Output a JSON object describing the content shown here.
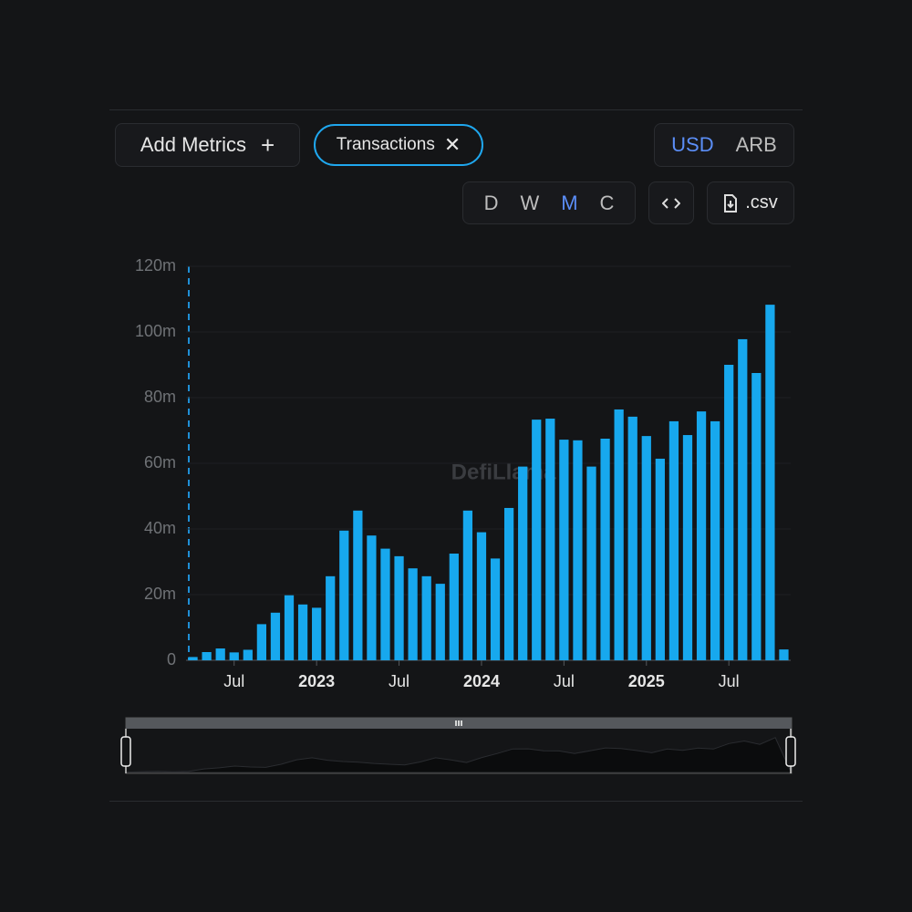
{
  "toolbar": {
    "add_metrics": "Add Metrics",
    "metric_chip": "Transactions",
    "currency": [
      "USD",
      "ARB"
    ],
    "active_currency": 0,
    "periods": [
      "D",
      "W",
      "M",
      "C"
    ],
    "active_period": 2,
    "csv": ".csv"
  },
  "chart_data": {
    "type": "bar",
    "watermark": "DefiLlama",
    "color": "#17a8ee",
    "categories": [
      null,
      null,
      null,
      "Jul",
      null,
      null,
      null,
      null,
      null,
      "2023",
      null,
      null,
      null,
      null,
      null,
      "Jul",
      null,
      null,
      null,
      null,
      null,
      "2024",
      null,
      null,
      null,
      null,
      null,
      "Jul",
      null,
      null,
      null,
      null,
      null,
      "2025",
      null,
      null,
      null,
      null,
      null,
      "Jul",
      null,
      null,
      null,
      null
    ],
    "values": [
      1,
      2.5,
      3.6,
      2.4,
      3.2,
      11,
      14.5,
      19.8,
      17,
      16,
      25.6,
      39.5,
      45.6,
      38,
      34,
      31.7,
      28,
      25.6,
      23.3,
      32.5,
      45.6,
      39,
      31,
      46.4,
      59,
      73.3,
      73.6,
      67.2,
      67,
      59,
      67.5,
      76.4,
      74.2,
      68.3,
      61.4,
      72.8,
      68.6,
      75.8,
      72.8,
      90,
      97.8,
      87.5,
      108.3,
      3.3
    ],
    "ylim": [
      0,
      120
    ],
    "yticks": [
      0,
      {
        "value": 20,
        "label": "20m"
      },
      {
        "value": 40,
        "label": "40m"
      },
      {
        "value": 60,
        "label": "60m"
      },
      {
        "value": 80,
        "label": "80m"
      },
      {
        "value": 100,
        "label": "100m"
      },
      {
        "value": 120,
        "label": "120m"
      }
    ],
    "grid": true
  }
}
